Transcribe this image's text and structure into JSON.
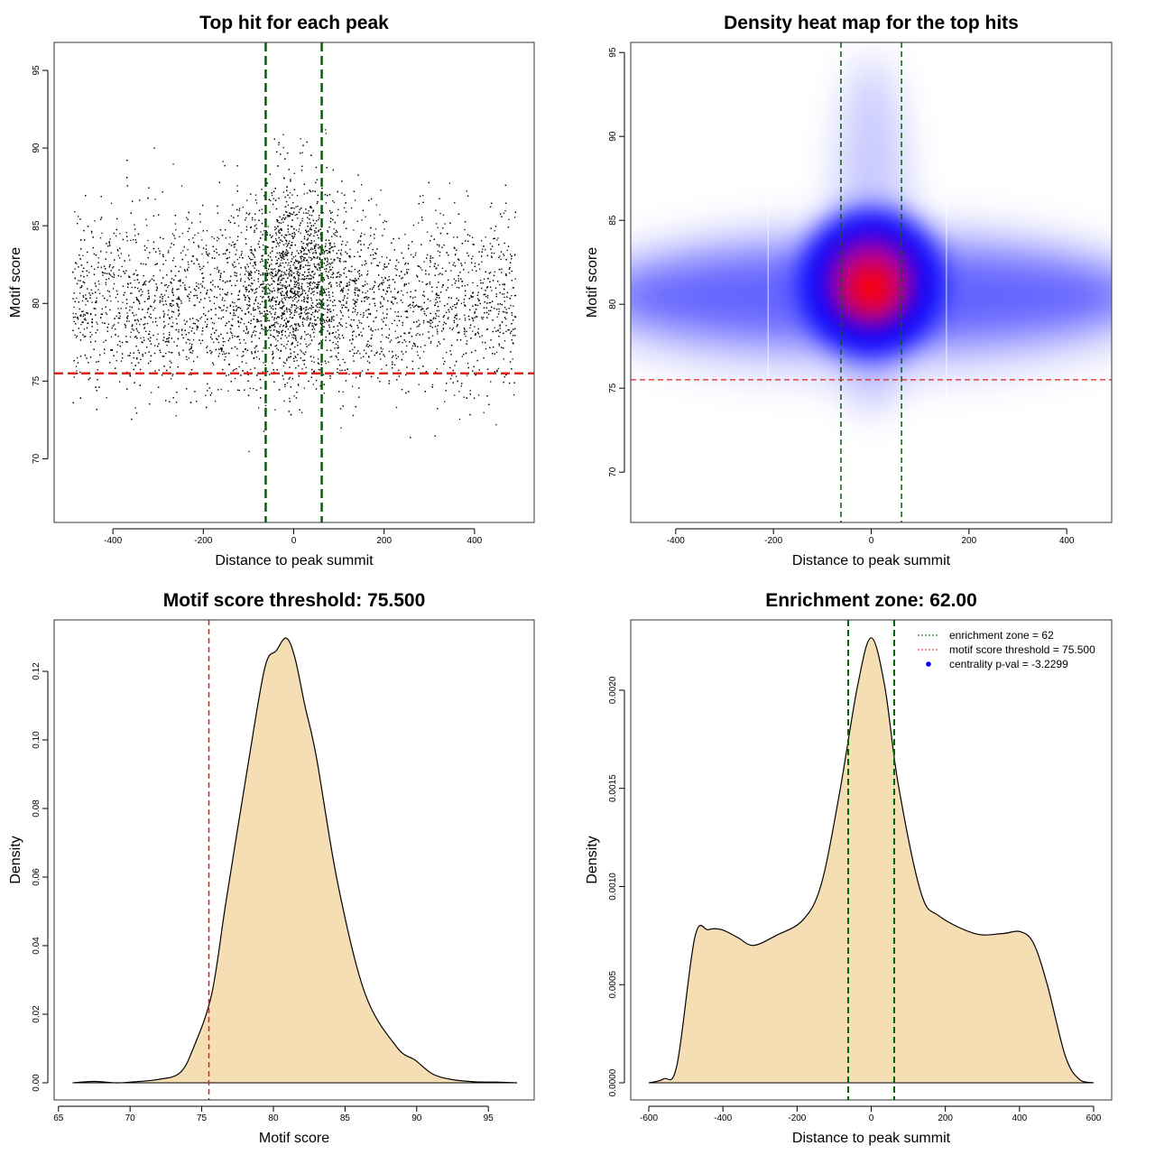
{
  "chart_data": [
    {
      "id": "scatter",
      "type": "scatter",
      "title": "Top hit for each peak",
      "xlabel": "Distance to peak summit",
      "ylabel": "Motif score",
      "xlim": [
        -530,
        532
      ],
      "ylim": [
        65.9,
        96.8
      ],
      "xticks": [
        -400,
        -200,
        0,
        200,
        400
      ],
      "yticks": [
        70,
        75,
        80,
        85,
        90,
        95
      ],
      "points_summary": {
        "n": 7000,
        "background": {
          "x_range": [
            -490,
            490
          ],
          "y_mean": 80,
          "y_sd": 2.8,
          "fraction": 0.72
        },
        "central": {
          "x_mean": 0,
          "x_sd": 60,
          "y_mean": 82,
          "y_sd": 3.0
        }
      },
      "vlines": [
        -62,
        62
      ],
      "hline": 75.5,
      "colors": {
        "points": "#000000",
        "vlines": "#006400",
        "hline": "#e0201b"
      }
    },
    {
      "id": "heatmap",
      "type": "heatmap",
      "title": "Density heat map for the top hits",
      "xlabel": "Distance to peak summit",
      "ylabel": "Motif score",
      "xlim": [
        -492,
        492
      ],
      "ylim": [
        67,
        95.6
      ],
      "xticks": [
        -400,
        -200,
        0,
        200,
        400
      ],
      "yticks": [
        70,
        75,
        80,
        85,
        90,
        95
      ],
      "peak": {
        "x": 0,
        "y": 81
      },
      "vlines": [
        -62,
        62
      ],
      "hline": 75.5,
      "colors": {
        "low": "#ffffff",
        "mid": "#0000ff",
        "high": "#ff0000",
        "vlines": "#006400",
        "hline": "#e0201b"
      }
    },
    {
      "id": "score-density",
      "type": "area",
      "title": "Motif score threshold: 75.500",
      "xlabel": "Motif score",
      "ylabel": "Density",
      "xlim": [
        64.7,
        98.2
      ],
      "ylim": [
        -0.005,
        0.135
      ],
      "xticks": [
        65,
        70,
        75,
        80,
        85,
        90,
        95
      ],
      "yticks": [
        0,
        0.02,
        0.04,
        0.06,
        0.08,
        0.1,
        0.12
      ],
      "ytick_labels": [
        "0.00",
        "0.02",
        "0.04",
        "0.06",
        "0.08",
        "0.10",
        "0.12"
      ],
      "x": [
        66,
        67.5,
        69,
        70,
        72,
        73.5,
        74.45,
        75.7,
        76.7,
        78.2,
        79.4,
        80.2,
        80.9,
        81.5,
        82.2,
        83,
        84.5,
        86.4,
        88.6,
        89.9,
        91.1,
        92.4,
        94,
        95.5,
        97
      ],
      "y": [
        0,
        0.0004,
        0,
        0.0002,
        0.001,
        0.003,
        0.0105,
        0.026,
        0.053,
        0.092,
        0.121,
        0.126,
        0.1297,
        0.124,
        0.11,
        0.095,
        0.058,
        0.026,
        0.0105,
        0.0066,
        0.0026,
        0.001,
        0.0003,
        0.0002,
        0
      ],
      "vline": 75.5,
      "colors": {
        "fill": "#f5deb3",
        "line": "#000000",
        "vline": "#e0201b"
      }
    },
    {
      "id": "distance-density",
      "type": "area",
      "title": "Enrichment zone: 62.00",
      "xlabel": "Distance to peak summit",
      "ylabel": "Density",
      "xlim": [
        -648.7,
        648.7
      ],
      "ylim": [
        -8.74e-05,
        0.002358
      ],
      "xticks": [
        -600,
        -400,
        -200,
        0,
        200,
        400,
        600
      ],
      "yticks": [
        0,
        0.0005,
        0.001,
        0.0015,
        0.002
      ],
      "ytick_labels": [
        "0.0000",
        "0.0005",
        "0.0010",
        "0.0015",
        "0.0020"
      ],
      "x": [
        -600,
        -560,
        -524,
        -476,
        -440,
        -403,
        -360,
        -318,
        -257,
        -184,
        -135,
        -86,
        -37,
        0,
        36.5,
        73,
        134,
        183,
        280,
        353,
        402,
        438,
        475,
        523,
        560,
        600
      ],
      "y": [
        0,
        2e-05,
        9e-05,
        0.00074,
        0.00078,
        0.00078,
        0.00074,
        0.0007,
        0.00075,
        0.00083,
        0.00101,
        0.00147,
        0.00202,
        0.002267,
        0.00202,
        0.00152,
        0.00097,
        0.00085,
        0.00076,
        0.00076,
        0.00077,
        0.00071,
        0.0005,
        0.00014,
        2e-05,
        0
      ],
      "vlines": [
        -62,
        62
      ],
      "legend": {
        "position": "top-right",
        "entries": [
          "enrichment zone = 62",
          "motif score threshold = 75.500",
          "centrality p-val = -3.2299"
        ]
      },
      "colors": {
        "fill": "#f5deb3",
        "line": "#000000",
        "vlines": "#006400",
        "legend_zone": "#006400",
        "legend_threshold": "#e0201b",
        "legend_pval": "#0000ff"
      }
    }
  ]
}
